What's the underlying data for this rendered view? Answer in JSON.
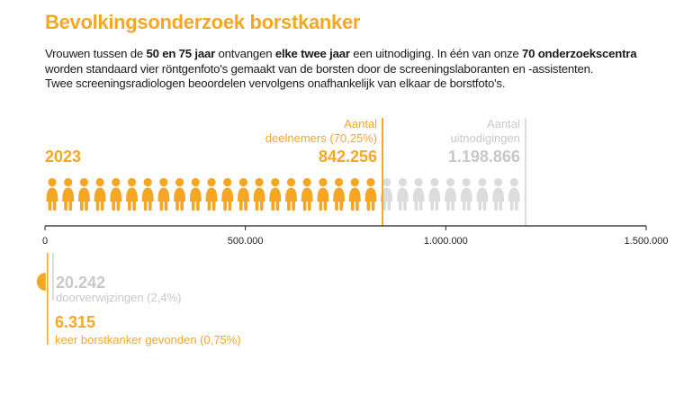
{
  "title": "Bevolkingsonderzoek borstkanker",
  "intro": {
    "line1": [
      {
        "text": "Vrouwen tussen de ",
        "bold": false
      },
      {
        "text": "50 en 75 jaar",
        "bold": true
      },
      {
        "text": " ontvangen ",
        "bold": false
      },
      {
        "text": "elke twee jaar",
        "bold": true
      },
      {
        "text": " een uitnodiging. In één van onze ",
        "bold": false
      },
      {
        "text": "70 onderzoekscentra",
        "bold": true
      }
    ],
    "line2": "worden standaard vier röntgenfoto's gemaakt van de borsten door de screeningslaboranten en -assistenten.",
    "line3": "Twee screeningsradiologen beoordelen vervolgens onafhankelijk van elkaar de borstfoto's."
  },
  "colors": {
    "accent": "#f5a623",
    "muted": "#dcdcdc",
    "muted_text": "#c8c8c8",
    "axis": "#222222"
  },
  "chart_data": {
    "type": "bar",
    "icon": "person-icon",
    "year": "2023",
    "xlim": [
      0,
      1500000
    ],
    "ticks": [
      {
        "value": 0,
        "label": "0"
      },
      {
        "value": 500000,
        "label": "500.000"
      },
      {
        "value": 1000000,
        "label": "1.000.000"
      },
      {
        "value": 1500000,
        "label": "1.500.000"
      }
    ],
    "series": [
      {
        "name": "Aantal deelnemers (70,25%)",
        "value": 842256,
        "value_label": "842.256",
        "label_lines": [
          "Aantal",
          "deelnemers (70,25%)"
        ],
        "color": "#f5a623"
      },
      {
        "name": "Aantal uitnodigingen",
        "value": 1198866,
        "value_label": "1.198.866",
        "label_lines": [
          "Aantal",
          "uitnodigingen"
        ],
        "color": "#dcdcdc"
      }
    ],
    "sub_series": [
      {
        "name": "doorverwijzingen (2,4%)",
        "value": 20242,
        "value_label": "20.242",
        "color": "#dcdcdc"
      },
      {
        "name": "keer borstkanker gevonden (0,75%)",
        "value": 6315,
        "value_label": "6.315",
        "color": "#f5a623"
      }
    ]
  }
}
